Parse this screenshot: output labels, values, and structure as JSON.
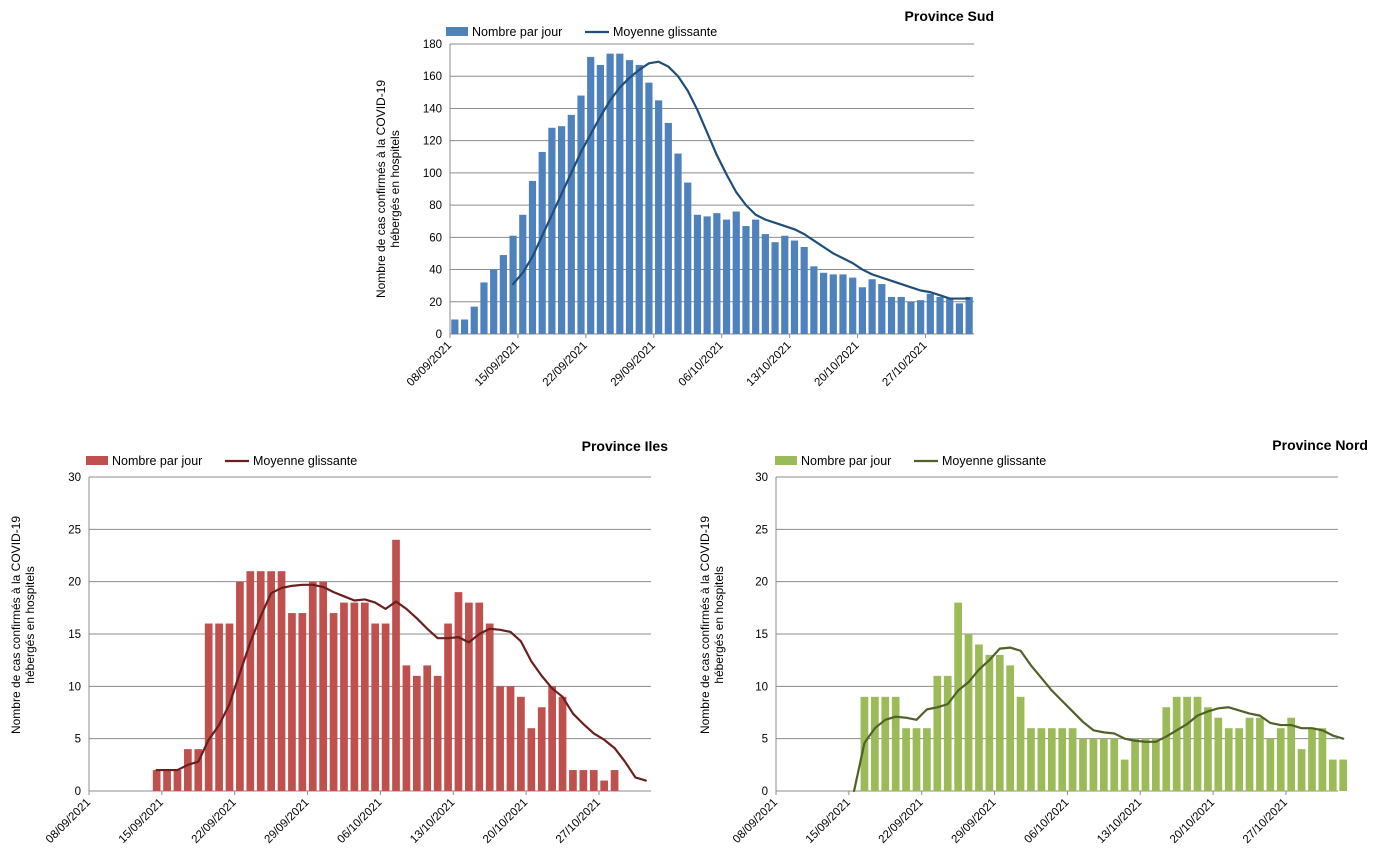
{
  "chart_data": [
    {
      "type": "bar",
      "title": "Province Sud",
      "ylabel_line1": "Nombre de cas confirmés à la COVID-19",
      "ylabel_line2": "hébergés en hospitels",
      "ylim": [
        0,
        180
      ],
      "yticks": [
        0,
        20,
        40,
        60,
        80,
        100,
        120,
        140,
        160,
        180
      ],
      "x_start": "08/09/2021",
      "xtick_labels": [
        "08/09/2021",
        "15/09/2021",
        "22/09/2021",
        "29/09/2021",
        "06/10/2021",
        "13/10/2021",
        "20/10/2021",
        "27/10/2021"
      ],
      "grid": true,
      "legend_position": "top",
      "colors": {
        "bar": "#4f81bd",
        "line": "#1f4e79"
      },
      "series": [
        {
          "name": "Nombre par jour",
          "kind": "bar",
          "start_index": 0,
          "values": [
            9,
            9,
            17,
            32,
            40,
            49,
            61,
            74,
            95,
            113,
            128,
            129,
            136,
            148,
            172,
            167,
            174,
            174,
            170,
            167,
            156,
            145,
            131,
            112,
            94,
            74,
            73,
            75,
            71,
            76,
            67,
            71,
            62,
            57,
            61,
            58,
            54,
            42,
            38,
            37,
            37,
            35,
            29,
            34,
            31,
            23,
            23,
            20,
            21,
            25,
            23,
            22,
            19,
            23
          ]
        },
        {
          "name": "Moyenne glissante",
          "kind": "line",
          "start_index": 6,
          "values": [
            31,
            38,
            48,
            61,
            74,
            87,
            100,
            113,
            124,
            135,
            145,
            153,
            159,
            164,
            168,
            169,
            166,
            160,
            151,
            139,
            125,
            111,
            99,
            88,
            80,
            74,
            71,
            69,
            67,
            65,
            62,
            58,
            54,
            50,
            47,
            44,
            40,
            37,
            35,
            33,
            31,
            29,
            27,
            26,
            24,
            22,
            22,
            22
          ]
        }
      ]
    },
    {
      "type": "bar",
      "title": "Province Iles",
      "ylabel_line1": "Nombre de cas confirmés à la COVID-19",
      "ylabel_line2": "hébergés en hospitels",
      "ylim": [
        0,
        30
      ],
      "yticks": [
        0,
        5,
        10,
        15,
        20,
        25,
        30
      ],
      "x_start": "08/09/2021",
      "xtick_labels": [
        "08/09/2021",
        "15/09/2021",
        "22/09/2021",
        "29/09/2021",
        "06/10/2021",
        "13/10/2021",
        "20/10/2021",
        "27/10/2021"
      ],
      "grid": true,
      "legend_position": "top-left",
      "colors": {
        "bar": "#c0504d",
        "line": "#6b1f1f"
      },
      "series": [
        {
          "name": "Nombre par jour",
          "kind": "bar",
          "start_index": 6,
          "values": [
            2,
            2,
            2,
            4,
            4,
            16,
            16,
            16,
            20,
            21,
            21,
            21,
            21,
            17,
            17,
            20,
            20,
            17,
            18,
            18,
            18,
            16,
            16,
            24,
            12,
            11,
            12,
            11,
            16,
            19,
            18,
            18,
            16,
            10,
            10,
            9,
            6,
            8,
            10,
            9,
            2,
            2,
            2,
            1,
            2
          ]
        },
        {
          "name": "Moyenne glissante",
          "kind": "line",
          "start_index": 6,
          "values": [
            2,
            2,
            2,
            2.5,
            2.8,
            4.9,
            6.3,
            8.3,
            11.3,
            14.2,
            16.7,
            18.9,
            19.4,
            19.6,
            19.7,
            19.7,
            19.5,
            19.0,
            18.6,
            18.2,
            18.3,
            18.0,
            17.4,
            18.1,
            17.4,
            16.5,
            15.5,
            14.6,
            14.6,
            14.7,
            14.2,
            15.0,
            15.5,
            15.4,
            15.2,
            14.3,
            12.4,
            11.0,
            9.8,
            9.0,
            7.4,
            6.4,
            5.5,
            4.9,
            4.1,
            2.8,
            1.3,
            1.0
          ]
        }
      ]
    },
    {
      "type": "bar",
      "title": "Province Nord",
      "ylabel_line1": "Nombre de cas confirmés à la COVID-19",
      "ylabel_line2": "hébergés en hospitels",
      "ylim": [
        0,
        30
      ],
      "yticks": [
        0,
        5,
        10,
        15,
        20,
        25,
        30
      ],
      "x_start": "08/09/2021",
      "xtick_labels": [
        "08/09/2021",
        "15/09/2021",
        "22/09/2021",
        "29/09/2021",
        "06/10/2021",
        "13/10/2021",
        "20/10/2021",
        "27/10/2021"
      ],
      "grid": true,
      "legend_position": "top-left",
      "colors": {
        "bar": "#9bbb59",
        "line": "#4f6228"
      },
      "series": [
        {
          "name": "Nombre par jour",
          "kind": "bar",
          "start_index": 8,
          "values": [
            9,
            9,
            9,
            9,
            6,
            6,
            6,
            11,
            11,
            18,
            15,
            14,
            13,
            13,
            12,
            9,
            6,
            6,
            6,
            6,
            6,
            5,
            5,
            5,
            5,
            3,
            5,
            5,
            5,
            8,
            9,
            9,
            9,
            8,
            7,
            6,
            6,
            7,
            7,
            5,
            6,
            7,
            4,
            6,
            6,
            3,
            3
          ]
        },
        {
          "name": "Moyenne glissante",
          "kind": "line",
          "start_index": 7,
          "values": [
            0,
            4.6,
            6.0,
            6.8,
            7.1,
            7.0,
            6.8,
            7.8,
            8.0,
            8.3,
            9.6,
            10.4,
            11.6,
            12.5,
            13.6,
            13.7,
            13.4,
            12.0,
            10.8,
            9.6,
            8.6,
            7.6,
            6.6,
            5.8,
            5.6,
            5.5,
            5.0,
            4.8,
            4.7,
            4.7,
            5.2,
            5.8,
            6.4,
            7.2,
            7.6,
            7.9,
            8.0,
            7.7,
            7.4,
            7.2,
            6.5,
            6.3,
            6.3,
            6.0,
            6.0,
            5.8,
            5.3,
            5.0
          ]
        }
      ]
    }
  ]
}
